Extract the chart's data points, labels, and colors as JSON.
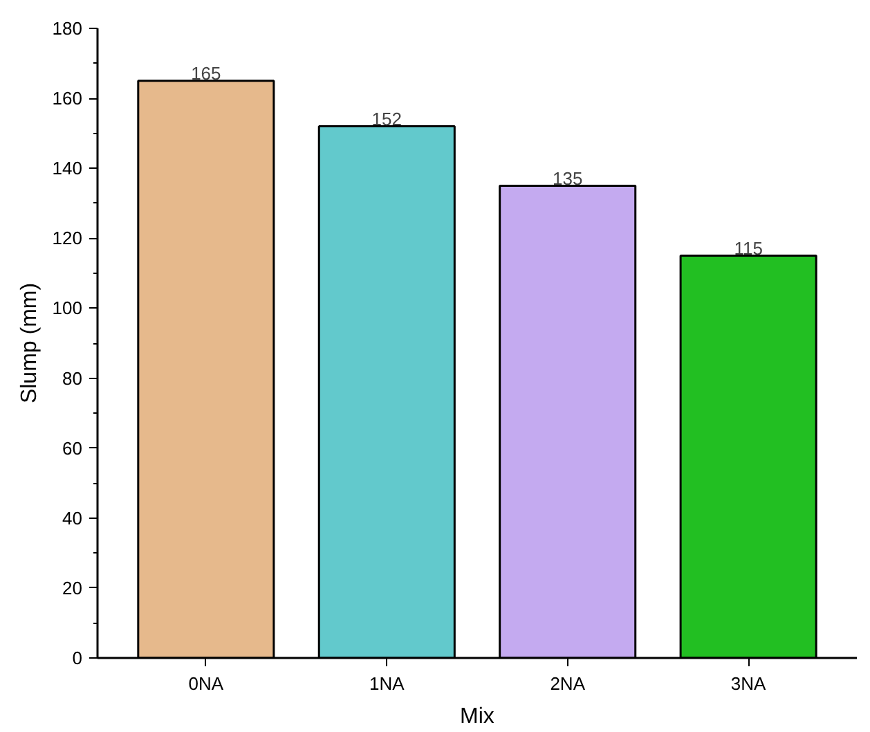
{
  "chart_data": {
    "type": "bar",
    "xlabel": "Mix",
    "ylabel": "Slump (mm)",
    "categories": [
      "0NA",
      "1NA",
      "2NA",
      "3NA"
    ],
    "values": [
      165,
      152,
      135,
      115
    ],
    "colors": [
      "#e6b98c",
      "#62c9cc",
      "#c4aaf0",
      "#22bf22"
    ],
    "ylim": [
      0,
      180
    ],
    "yticks": [
      0,
      20,
      40,
      60,
      80,
      100,
      120,
      140,
      160,
      180
    ],
    "data_labels": true
  }
}
